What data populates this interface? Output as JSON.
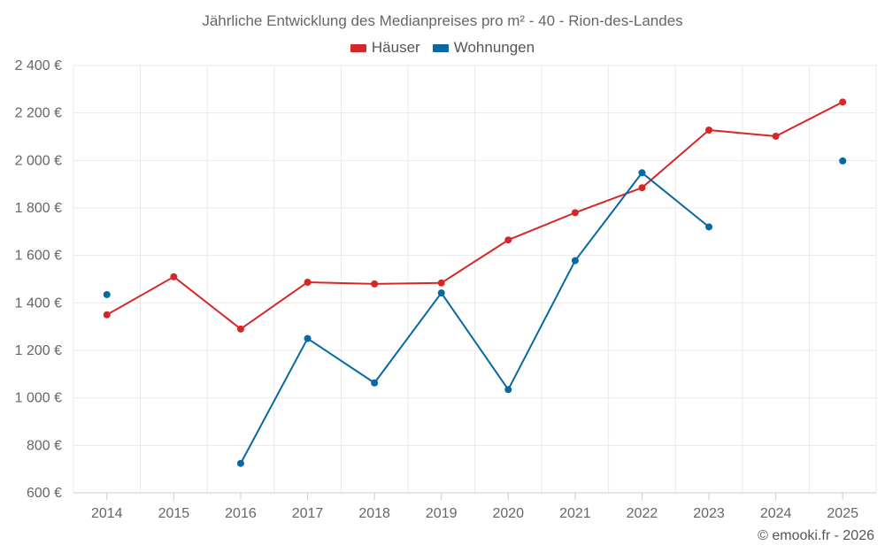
{
  "chart_data": {
    "type": "line",
    "title": "Jährliche Entwicklung des Medianpreises pro m² - 40 - Rion-des-Landes",
    "categories": [
      "2014",
      "2015",
      "2016",
      "2017",
      "2018",
      "2019",
      "2020",
      "2021",
      "2022",
      "2023",
      "2024",
      "2025"
    ],
    "ylim": [
      600,
      2400
    ],
    "yticks": [
      600,
      800,
      1000,
      1200,
      1400,
      1600,
      1800,
      2000,
      2200,
      2400
    ],
    "ytick_labels": [
      "600 €",
      "800 €",
      "1 000 €",
      "1 200 €",
      "1 400 €",
      "1 600 €",
      "1 800 €",
      "2 000 €",
      "2 200 €",
      "2 400 €"
    ],
    "grid": true,
    "legend_position": "top-center",
    "series": [
      {
        "name": "Häuser",
        "color": "#d62728",
        "values": [
          1350,
          1510,
          1290,
          1487,
          1480,
          1484,
          1665,
          1780,
          1885,
          2128,
          2102,
          2246
        ]
      },
      {
        "name": "Wohnungen",
        "color": "#0868a0",
        "values": [
          1435,
          null,
          724,
          1250,
          1063,
          1442,
          1035,
          1578,
          1948,
          1720,
          null,
          1998
        ]
      }
    ]
  },
  "credit": "© emooki.fr - 2026"
}
